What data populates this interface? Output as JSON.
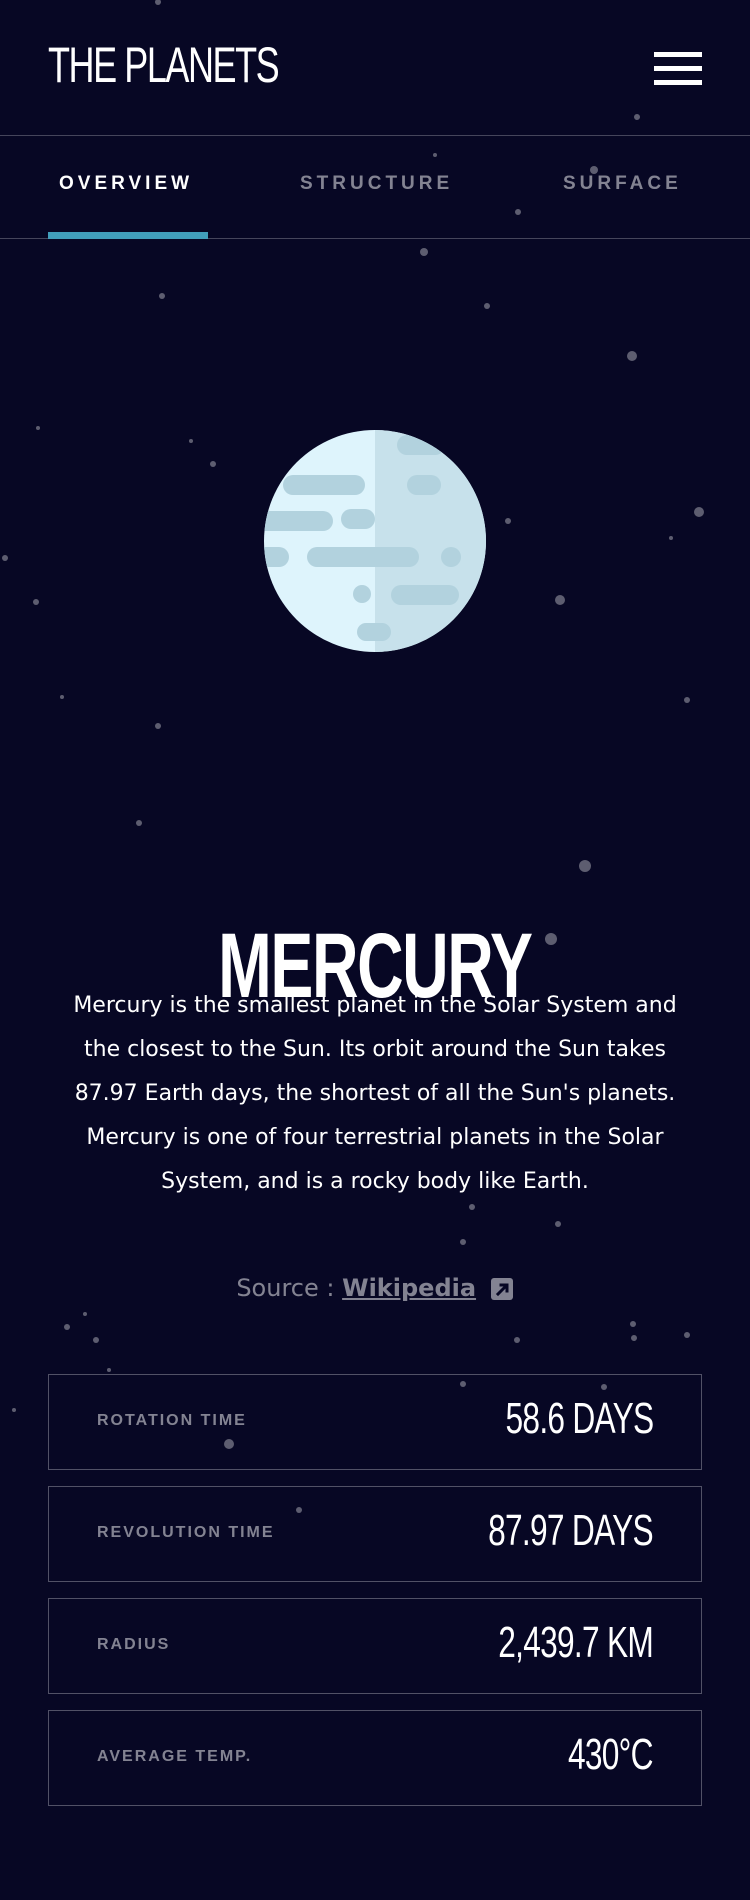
{
  "header": {
    "logo": "THE PLANETS",
    "menu_icon": "hamburger-icon"
  },
  "tabs": [
    {
      "label": "OVERVIEW",
      "active": true
    },
    {
      "label": "STRUCTURE",
      "active": false
    },
    {
      "label": "SURFACE",
      "active": false
    }
  ],
  "planet": {
    "name": "MERCURY",
    "description": "Mercury is the smallest planet in the Solar System and the closest to the Sun. Its orbit around the Sun takes 87.97 Earth days, the shortest of all the Sun's planets. Mercury is one of four terrestrial planets in the Solar System, and is a rocky body like Earth.",
    "source_prefix": "Source : ",
    "source_link": "Wikipedia",
    "source_icon": "external-link-icon"
  },
  "stats": [
    {
      "label": "ROTATION TIME",
      "value": "58.6 DAYS"
    },
    {
      "label": "REVOLUTION TIME",
      "value": "87.97 DAYS"
    },
    {
      "label": "RADIUS",
      "value": "2,439.7 KM"
    },
    {
      "label": "AVERAGE TEMP.",
      "value": "430°C"
    }
  ],
  "colors": {
    "background": "#070724",
    "accent": "#419ebb",
    "planet_light": "#def4fc",
    "planet_shade": "#c7e1eb",
    "planet_crater": "#b2d2de"
  }
}
